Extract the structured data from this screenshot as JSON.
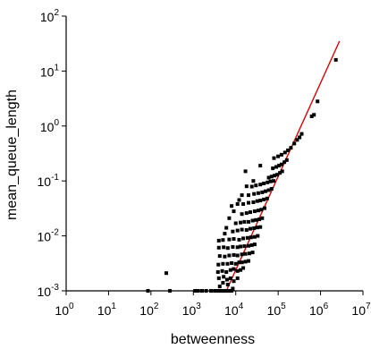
{
  "chart_data": {
    "type": "scatter",
    "title": "",
    "xlabel": "betweenness",
    "ylabel": "mean_queue_length",
    "xscale": "log",
    "yscale": "log",
    "xlim": [
      1,
      10000000
    ],
    "ylim": [
      0.001,
      100
    ],
    "x_ticks": [
      {
        "value": 1,
        "base": "10",
        "exp": "0"
      },
      {
        "value": 10,
        "base": "10",
        "exp": "1"
      },
      {
        "value": 100,
        "base": "10",
        "exp": "2"
      },
      {
        "value": 1000,
        "base": "10",
        "exp": "3"
      },
      {
        "value": 10000,
        "base": "10",
        "exp": "4"
      },
      {
        "value": 100000,
        "base": "10",
        "exp": "5"
      },
      {
        "value": 1000000,
        "base": "10",
        "exp": "6"
      },
      {
        "value": 10000000,
        "base": "10",
        "exp": "7"
      }
    ],
    "y_ticks": [
      {
        "value": 0.001,
        "base": "10",
        "exp": "-3"
      },
      {
        "value": 0.01,
        "base": "10",
        "exp": "-2"
      },
      {
        "value": 0.1,
        "base": "10",
        "exp": "-1"
      },
      {
        "value": 1,
        "base": "10",
        "exp": "0"
      },
      {
        "value": 10,
        "base": "10",
        "exp": "1"
      },
      {
        "value": 100,
        "base": "10",
        "exp": "2"
      }
    ],
    "grid": false,
    "legend": "none",
    "marker_color": "#000000",
    "fit_color": "#e00000",
    "fit_line": {
      "x": [
        6000,
        2800000
      ],
      "y": [
        0.001,
        35
      ]
    },
    "points": [
      [
        85,
        0.001
      ],
      [
        230,
        0.0021
      ],
      [
        280,
        0.001
      ],
      [
        1100,
        0.001
      ],
      [
        1300,
        0.001
      ],
      [
        1600,
        0.001
      ],
      [
        2000,
        0.001
      ],
      [
        2600,
        0.001
      ],
      [
        3200,
        0.001
      ],
      [
        3800,
        0.001
      ],
      [
        4500,
        0.001
      ],
      [
        5200,
        0.001
      ],
      [
        6000,
        0.001
      ],
      [
        7000,
        0.001
      ],
      [
        8000,
        0.001
      ],
      [
        4200,
        0.0012
      ],
      [
        5000,
        0.0014
      ],
      [
        6500,
        0.0013
      ],
      [
        8500,
        0.0011
      ],
      [
        4000,
        0.0017
      ],
      [
        5200,
        0.0018
      ],
      [
        6200,
        0.0016
      ],
      [
        7500,
        0.0017
      ],
      [
        9000,
        0.0015
      ],
      [
        11000,
        0.0017
      ],
      [
        3800,
        0.0022
      ],
      [
        4800,
        0.0023
      ],
      [
        6000,
        0.0022
      ],
      [
        7500,
        0.0024
      ],
      [
        9000,
        0.0025
      ],
      [
        11000,
        0.0023
      ],
      [
        13000,
        0.0024
      ],
      [
        15000,
        0.0026
      ],
      [
        3900,
        0.003
      ],
      [
        5000,
        0.0031
      ],
      [
        6400,
        0.0031
      ],
      [
        8000,
        0.0032
      ],
      [
        10000,
        0.0031
      ],
      [
        12000,
        0.0033
      ],
      [
        14000,
        0.0033
      ],
      [
        17000,
        0.0034
      ],
      [
        20000,
        0.0035
      ],
      [
        4200,
        0.0043
      ],
      [
        5500,
        0.0042
      ],
      [
        7000,
        0.0044
      ],
      [
        9000,
        0.0045
      ],
      [
        11000,
        0.0044
      ],
      [
        14000,
        0.0046
      ],
      [
        17000,
        0.0047
      ],
      [
        21000,
        0.0048
      ],
      [
        25000,
        0.005
      ],
      [
        4000,
        0.0061
      ],
      [
        5200,
        0.0062
      ],
      [
        6500,
        0.006
      ],
      [
        8500,
        0.0063
      ],
      [
        11000,
        0.0062
      ],
      [
        13000,
        0.0064
      ],
      [
        16000,
        0.0065
      ],
      [
        20000,
        0.0066
      ],
      [
        24000,
        0.0068
      ],
      [
        28000,
        0.007
      ],
      [
        4000,
        0.0082
      ],
      [
        5000,
        0.0084
      ],
      [
        7000,
        0.0086
      ],
      [
        9000,
        0.0088
      ],
      [
        12000,
        0.0085
      ],
      [
        15000,
        0.009
      ],
      [
        19000,
        0.0092
      ],
      [
        23000,
        0.0094
      ],
      [
        28000,
        0.0096
      ],
      [
        33000,
        0.01
      ],
      [
        8500,
        0.012
      ],
      [
        11000,
        0.0125
      ],
      [
        14000,
        0.013
      ],
      [
        18000,
        0.0128
      ],
      [
        22000,
        0.0135
      ],
      [
        27000,
        0.0138
      ],
      [
        32000,
        0.0142
      ],
      [
        38000,
        0.0145
      ],
      [
        10000,
        0.017
      ],
      [
        13000,
        0.0175
      ],
      [
        16000,
        0.018
      ],
      [
        20000,
        0.018
      ],
      [
        25000,
        0.019
      ],
      [
        30000,
        0.0195
      ],
      [
        36000,
        0.02
      ],
      [
        42000,
        0.021
      ],
      [
        9000,
        0.028
      ],
      [
        14000,
        0.025
      ],
      [
        18000,
        0.026
      ],
      [
        22000,
        0.027
      ],
      [
        28000,
        0.028
      ],
      [
        34000,
        0.029
      ],
      [
        40000,
        0.03
      ],
      [
        48000,
        0.032
      ],
      [
        11000,
        0.038
      ],
      [
        15000,
        0.038
      ],
      [
        20000,
        0.04
      ],
      [
        26000,
        0.041
      ],
      [
        32000,
        0.043
      ],
      [
        38000,
        0.044
      ],
      [
        46000,
        0.046
      ],
      [
        55000,
        0.048
      ],
      [
        14000,
        0.055
      ],
      [
        20000,
        0.055
      ],
      [
        27000,
        0.058
      ],
      [
        34000,
        0.06
      ],
      [
        42000,
        0.062
      ],
      [
        50000,
        0.065
      ],
      [
        60000,
        0.068
      ],
      [
        70000,
        0.072
      ],
      [
        18000,
        0.08
      ],
      [
        24000,
        0.079
      ],
      [
        30000,
        0.083
      ],
      [
        38000,
        0.086
      ],
      [
        46000,
        0.09
      ],
      [
        56000,
        0.094
      ],
      [
        66000,
        0.098
      ],
      [
        78000,
        0.1
      ],
      [
        26000,
        0.1
      ],
      [
        60000,
        0.115
      ],
      [
        70000,
        0.12
      ],
      [
        82000,
        0.125
      ],
      [
        95000,
        0.13
      ],
      [
        110000,
        0.14
      ],
      [
        125000,
        0.15
      ],
      [
        17000,
        0.15
      ],
      [
        75000,
        0.17
      ],
      [
        90000,
        0.18
      ],
      [
        105000,
        0.19
      ],
      [
        120000,
        0.2
      ],
      [
        140000,
        0.22
      ],
      [
        160000,
        0.24
      ],
      [
        38000,
        0.19
      ],
      [
        80000,
        0.26
      ],
      [
        100000,
        0.28
      ],
      [
        120000,
        0.3
      ],
      [
        145000,
        0.33
      ],
      [
        170000,
        0.36
      ],
      [
        200000,
        0.4
      ],
      [
        240000,
        0.48
      ],
      [
        280000,
        0.56
      ],
      [
        320000,
        0.62
      ],
      [
        360000,
        0.72
      ],
      [
        6000,
        0.014
      ],
      [
        7000,
        0.021
      ],
      [
        8000,
        0.035
      ],
      [
        12000,
        0.045
      ],
      [
        5500,
        0.011
      ],
      [
        620000,
        1.5
      ],
      [
        700000,
        1.6
      ],
      [
        850000,
        2.8
      ],
      [
        2300000,
        16
      ]
    ]
  }
}
